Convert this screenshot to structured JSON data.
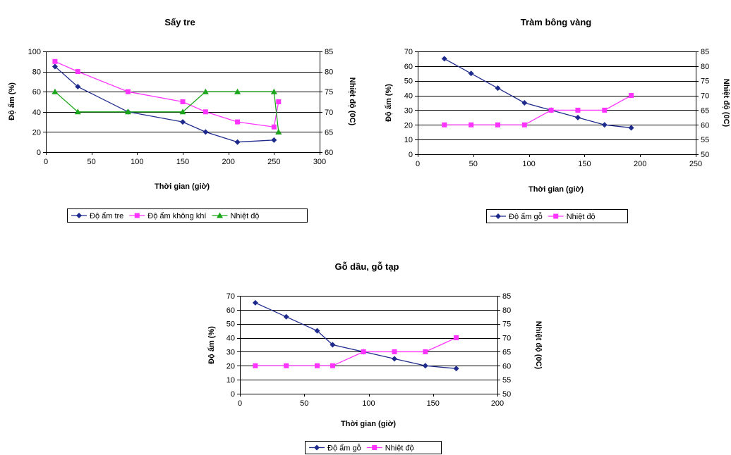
{
  "colors": {
    "navy": "#1f2b8c",
    "magenta": "#ff33ff",
    "green": "#1aa51a"
  },
  "chart_data": [
    {
      "type": "line",
      "title": "Sấy tre",
      "xlabel": "Thời gian (giờ)",
      "ylabel": "Độ ẩm (%)",
      "y2label": "Nhiệt độ (0C)",
      "xlim": [
        0,
        300
      ],
      "xticks": [
        0,
        50,
        100,
        150,
        200,
        250,
        300
      ],
      "ylim": [
        0,
        100
      ],
      "yticks": [
        0,
        20,
        40,
        60,
        80,
        100
      ],
      "y2lim": [
        60,
        85
      ],
      "y2ticks": [
        60,
        65,
        70,
        75,
        80,
        85
      ],
      "grid": true,
      "legend": "bottom",
      "series": [
        {
          "name": "Độ ẩm tre",
          "axis": "left",
          "color": "#1f2b8c",
          "marker": "diamond",
          "x": [
            10,
            35,
            90,
            150,
            175,
            210,
            250
          ],
          "y": [
            85,
            65,
            40,
            30,
            20,
            10,
            12
          ]
        },
        {
          "name": "Độ ẩm không khí",
          "axis": "left",
          "color": "#ff33ff",
          "marker": "square",
          "x": [
            10,
            35,
            90,
            150,
            175,
            210,
            250,
            255
          ],
          "y": [
            90,
            80,
            60,
            50,
            40,
            30,
            25,
            50
          ]
        },
        {
          "name": "Nhiệt độ",
          "axis": "right",
          "color": "#1aa51a",
          "marker": "triangle",
          "x": [
            10,
            35,
            90,
            150,
            175,
            210,
            250,
            255
          ],
          "y": [
            75,
            70,
            70,
            70,
            75,
            75,
            75,
            65
          ]
        }
      ]
    },
    {
      "type": "line",
      "title": "Tràm bông vàng",
      "xlabel": "Thời gian (giờ)",
      "ylabel": "Độ ẩm (%)",
      "y2label": "Nhiệt độ (0C)",
      "xlim": [
        0,
        250
      ],
      "xticks": [
        0,
        50,
        100,
        150,
        200,
        250
      ],
      "ylim": [
        0,
        70
      ],
      "yticks": [
        0,
        10,
        20,
        30,
        40,
        50,
        60,
        70
      ],
      "y2lim": [
        50,
        85
      ],
      "y2ticks": [
        50,
        55,
        60,
        65,
        70,
        75,
        80,
        85
      ],
      "grid": true,
      "legend": "bottom",
      "series": [
        {
          "name": "Độ ẩm gỗ",
          "axis": "left",
          "color": "#1f2b8c",
          "marker": "diamond",
          "x": [
            24,
            48,
            72,
            96,
            120,
            144,
            168,
            192
          ],
          "y": [
            65,
            55,
            45,
            35,
            30,
            25,
            20,
            18
          ]
        },
        {
          "name": "Nhiệt độ",
          "axis": "right",
          "color": "#ff33ff",
          "marker": "square",
          "x": [
            24,
            48,
            72,
            96,
            120,
            144,
            168,
            192
          ],
          "y": [
            60,
            60,
            60,
            60,
            65,
            65,
            65,
            70
          ]
        }
      ]
    },
    {
      "type": "line",
      "title": "Gỗ dầu, gỗ tạp",
      "xlabel": "Thời gian (giờ)",
      "ylabel": "Độ ẩm (%)",
      "y2label": "Nhiệt độ (0C)",
      "xlim": [
        0,
        200
      ],
      "xticks": [
        0,
        50,
        100,
        150,
        200
      ],
      "ylim": [
        0,
        70
      ],
      "yticks": [
        0,
        10,
        20,
        30,
        40,
        50,
        60,
        70
      ],
      "y2lim": [
        50,
        85
      ],
      "y2ticks": [
        50,
        55,
        60,
        65,
        70,
        75,
        80,
        85
      ],
      "grid": true,
      "legend": "bottom",
      "series": [
        {
          "name": "Độ ẩm gỗ",
          "axis": "left",
          "color": "#1f2b8c",
          "marker": "diamond",
          "x": [
            12,
            36,
            60,
            72,
            96,
            120,
            144,
            168
          ],
          "y": [
            65,
            55,
            45,
            35,
            30,
            25,
            20,
            18
          ]
        },
        {
          "name": "Nhiệt độ",
          "axis": "right",
          "color": "#ff33ff",
          "marker": "square",
          "x": [
            12,
            36,
            60,
            72,
            96,
            120,
            144,
            168
          ],
          "y": [
            60,
            60,
            60,
            60,
            65,
            65,
            65,
            70
          ]
        }
      ]
    }
  ]
}
